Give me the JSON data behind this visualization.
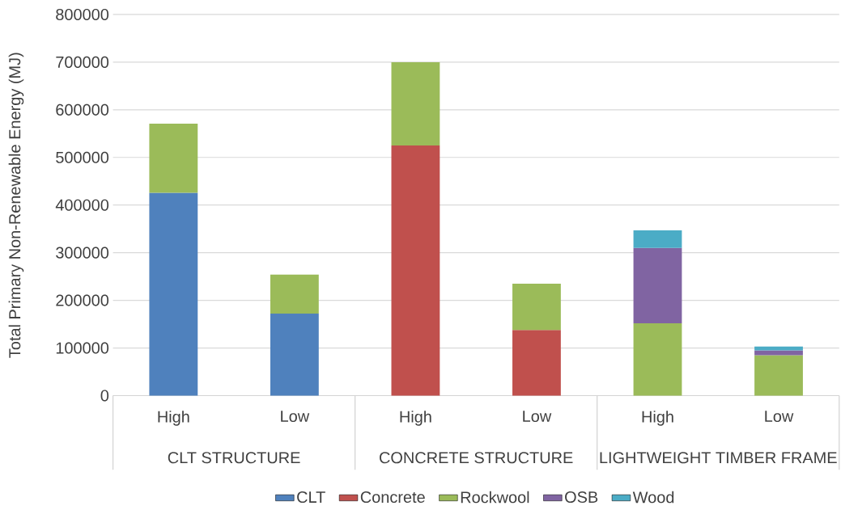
{
  "chart_data": {
    "type": "bar",
    "stacked": true,
    "ylabel": "Total Primary Non-Renewable Energy (MJ)",
    "categories": [
      "High",
      "Low",
      "High",
      "Low",
      "High",
      "Low"
    ],
    "annotations": [
      "CLT STRUCTURE",
      "CONCRETE STRUCTURE",
      "LIGHTWEIGHT TIMBER FRAME"
    ],
    "series": [
      {
        "name": "CLT",
        "color": "#4f81bd",
        "values": [
          426000,
          172000,
          null,
          null,
          null,
          null
        ]
      },
      {
        "name": "Concrete",
        "color": "#c0504d",
        "values": [
          null,
          null,
          525000,
          138000,
          null,
          null
        ]
      },
      {
        "name": "Rockwool",
        "color": "#9bbb59",
        "values": [
          145000,
          82000,
          175000,
          97000,
          152000,
          85000
        ]
      },
      {
        "name": "OSB",
        "color": "#8064a2",
        "values": [
          null,
          null,
          null,
          null,
          158000,
          10000
        ]
      },
      {
        "name": "Wood",
        "color": "#4bacc6",
        "values": [
          null,
          null,
          null,
          null,
          37000,
          8000
        ]
      }
    ],
    "ylim": [
      0,
      800000
    ],
    "yticks": [
      0,
      100000,
      200000,
      300000,
      400000,
      500000,
      600000,
      700000,
      800000
    ],
    "grid": "y",
    "legend": "bottom"
  }
}
